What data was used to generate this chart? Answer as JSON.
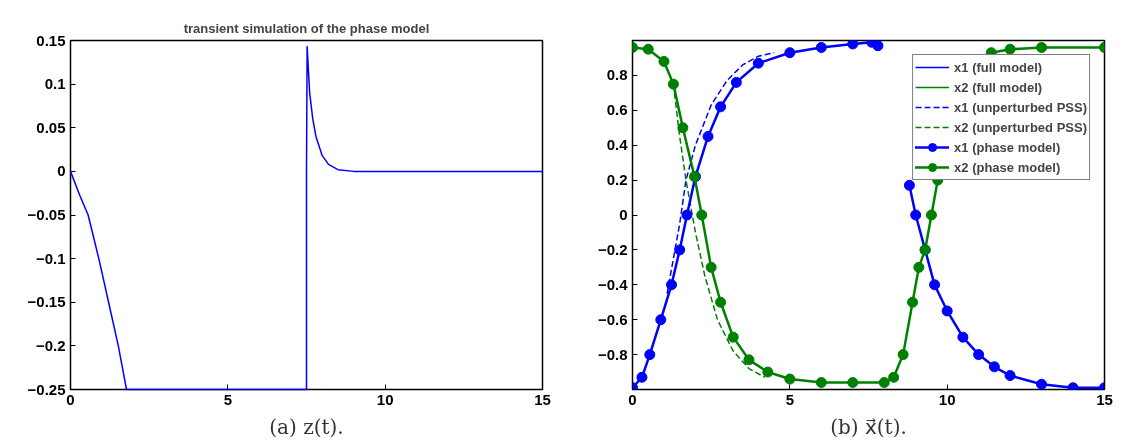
{
  "chart_data": [
    {
      "type": "line",
      "title": "transient simulation of the phase model",
      "annotations": [
        "(a) z(t)."
      ],
      "xlim": [
        0,
        15
      ],
      "ylim": [
        -0.25,
        0.15
      ],
      "xticks": [
        0,
        5,
        10,
        15
      ],
      "yticks": [
        -0.25,
        -0.2,
        -0.15,
        -0.1,
        -0.05,
        0,
        0.05,
        0.1,
        0.15
      ],
      "grid": false,
      "legend": false,
      "series": [
        {
          "color": "#0000ff",
          "x": [
            0,
            0.3,
            0.56,
            0.9,
            1.21,
            1.52,
            1.78,
            5,
            7.5,
            7.5,
            7.52,
            7.6,
            7.7,
            7.8,
            8.0,
            8.2,
            8.5,
            9.0,
            10,
            15
          ],
          "values": [
            0,
            -0.028,
            -0.05,
            -0.1,
            -0.15,
            -0.2,
            -0.25,
            -0.25,
            -0.25,
            0,
            0.143,
            0.09,
            0.06,
            0.04,
            0.018,
            0.008,
            0.002,
            0,
            0,
            0
          ]
        }
      ]
    },
    {
      "type": "line",
      "annotations": [
        "(b) x⃗(t)."
      ],
      "xlim": [
        0,
        15
      ],
      "ylim": [
        -1,
        1
      ],
      "xticks": [
        0,
        5,
        10,
        15
      ],
      "yticks": [
        -0.8,
        -0.6,
        -0.4,
        -0.2,
        0,
        0.2,
        0.4,
        0.6,
        0.8
      ],
      "grid": false,
      "legend": "top right",
      "series": [
        {
          "name": "x1 (full model)",
          "color": "#0000ff",
          "line_style": "solid"
        },
        {
          "name": "x2 (full model)",
          "color": "#008000",
          "line_style": "solid"
        },
        {
          "name": "x1 (unperturbed PSS)",
          "color": "#0000ff",
          "line_style": "dashed",
          "marker": "none",
          "x": [
            1.1,
            1.3,
            1.5,
            1.7,
            2.0,
            2.5,
            3,
            3.5,
            4,
            4.5
          ],
          "values": [
            -0.45,
            -0.25,
            -0.05,
            0.2,
            0.4,
            0.63,
            0.77,
            0.86,
            0.91,
            0.93
          ]
        },
        {
          "name": "x2 (unperturbed PSS)",
          "color": "#008000",
          "line_style": "dashed",
          "marker": "none",
          "x": [
            1.3,
            1.5,
            1.7,
            2.0,
            2.3,
            2.7,
            3.2,
            3.7,
            4.2
          ],
          "values": [
            0.75,
            0.45,
            0.2,
            -0.1,
            -0.35,
            -0.6,
            -0.78,
            -0.88,
            -0.93
          ]
        },
        {
          "name": "x1 (phase model)",
          "color": "#0000ff",
          "line_style": "solid",
          "marker": "circle",
          "x": [
            0,
            0.3,
            0.55,
            0.9,
            1.24,
            1.5,
            1.73,
            2.0,
            2.4,
            2.8,
            3.3,
            4,
            5,
            6,
            7,
            7.6,
            7.8,
            8.3,
            8.8,
            9.0,
            9.3,
            9.6,
            10,
            10.5,
            11,
            11.5,
            12,
            13,
            14,
            15
          ],
          "values": [
            -0.99,
            -0.93,
            -0.8,
            -0.6,
            -0.4,
            -0.2,
            0,
            0.22,
            0.45,
            0.62,
            0.76,
            0.87,
            0.93,
            0.96,
            0.98,
            0.99,
            0.97,
            null,
            0.17,
            0.0,
            -0.2,
            -0.4,
            -0.55,
            -0.7,
            -0.8,
            -0.87,
            -0.92,
            -0.97,
            -0.99,
            -0.99
          ]
        },
        {
          "name": "x2 (phase model)",
          "color": "#008000",
          "line_style": "solid",
          "marker": "circle",
          "x": [
            0,
            0.5,
            1.0,
            1.3,
            1.6,
            1.97,
            2.2,
            2.5,
            2.8,
            3.2,
            3.7,
            4.3,
            5,
            6,
            7,
            8,
            8.3,
            8.6,
            8.9,
            9.1,
            9.3,
            9.5,
            9.7,
            10.5,
            11.4,
            12,
            13,
            15
          ],
          "values": [
            0.96,
            0.95,
            0.88,
            0.75,
            0.5,
            0.22,
            0,
            -0.3,
            -0.5,
            -0.7,
            -0.83,
            -0.9,
            -0.94,
            -0.96,
            -0.96,
            -0.96,
            -0.93,
            -0.8,
            -0.5,
            -0.3,
            -0.2,
            0,
            0.2,
            null,
            0.93,
            0.95,
            0.96,
            0.96
          ]
        }
      ]
    }
  ]
}
